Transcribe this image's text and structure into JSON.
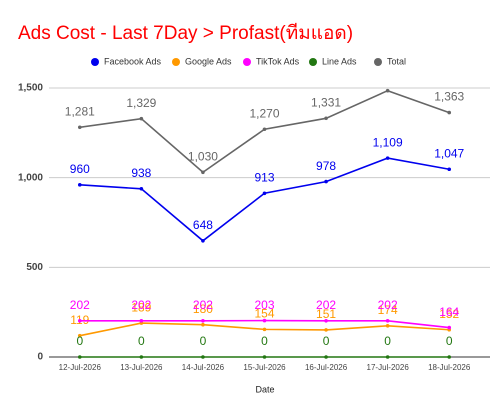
{
  "chart_data": {
    "type": "line",
    "title": "Ads Cost - Last 7Day > Profast(ทีมแอด)",
    "x_label": "Date",
    "categories": [
      "12-Jul-2026",
      "13-Jul-2026",
      "14-Jul-2026",
      "15-Jul-2026",
      "16-Jul-2026",
      "17-Jul-2026",
      "18-Jul-2026"
    ],
    "series": [
      {
        "name": "Facebook Ads",
        "color": "#0000ee",
        "values": [
          960,
          938,
          648,
          913,
          978,
          1109,
          1047
        ],
        "value_labels": [
          "960",
          "938",
          "648",
          "913",
          "978",
          "1,109",
          "1,047"
        ]
      },
      {
        "name": "Google Ads",
        "color": "#ff9900",
        "values": [
          119,
          189,
          180,
          154,
          151,
          174,
          152
        ],
        "value_labels": [
          "119",
          "189",
          "180",
          "154",
          "151",
          "174",
          "152"
        ]
      },
      {
        "name": "TikTok Ads",
        "color": "#ff00ff",
        "values": [
          202,
          202,
          202,
          203,
          202,
          202,
          164
        ],
        "value_labels": [
          "202",
          "202",
          "202",
          "203",
          "202",
          "202",
          "164"
        ]
      },
      {
        "name": "Line Ads",
        "color": "#227711",
        "values": [
          0,
          0,
          0,
          0,
          0,
          0,
          0
        ],
        "value_labels": [
          "0",
          "0",
          "0",
          "0",
          "0",
          "0",
          "0"
        ]
      },
      {
        "name": "Total",
        "color": "#666666",
        "values": [
          1281,
          1329,
          1030,
          1270,
          1331,
          1485,
          1363
        ],
        "value_labels": [
          "1,281",
          "1,329",
          "1,030",
          "1,270",
          "1,331",
          null,
          "1,363"
        ]
      }
    ],
    "ylim": [
      0,
      1500
    ],
    "yticks": [
      0,
      500,
      {
        "value": 1000,
        "label": "1,000"
      },
      {
        "value": 1500,
        "label": "1,500"
      }
    ],
    "grid": true
  }
}
